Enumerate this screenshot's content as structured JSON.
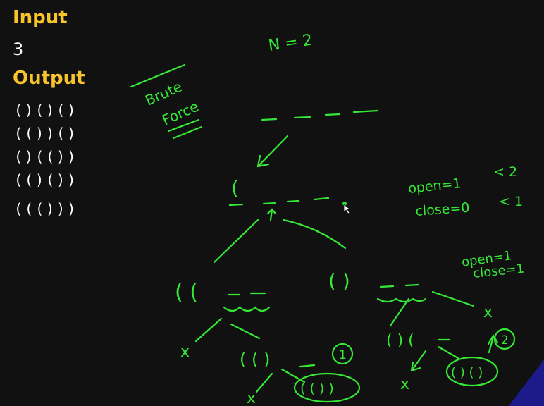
{
  "input": {
    "heading": "Input",
    "value": "3"
  },
  "output": {
    "heading": "Output",
    "combinations": [
      "()()()",
      "(())()",
      "()(())",
      "(()())",
      "((()))"
    ]
  },
  "notes": {
    "n": "N = 2",
    "brute": "Brute",
    "force": "Force",
    "open1": "open=1",
    "lt2": "< 2",
    "close0": "close=0",
    "lt1": "< 1",
    "open1b": "open=1",
    "close1": "close=1",
    "root_paren": "(",
    "left_node": "( (",
    "right_node": "( )",
    "ll_x": "x",
    "lr_node": "( ( )",
    "lr_count": "1",
    "lrl_x": "x",
    "lrr_node": "( ( ) )",
    "rr_x": "x",
    "rl_node": "( ) (",
    "rll_x": "x",
    "rlr_node": "( ) ( )",
    "rl_count": "2"
  },
  "colors": {
    "ink": "#36e836",
    "heading": "#f7c52b",
    "text": "#ffffff",
    "background": "#111112"
  }
}
